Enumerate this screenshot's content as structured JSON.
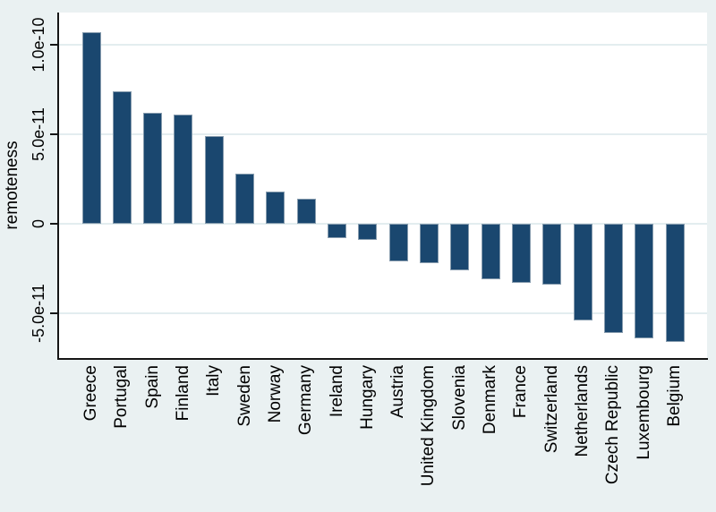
{
  "figure": {
    "background_color": "#eaf1f2",
    "plot_background_color": "#ffffff",
    "bar_color": "#1a476f",
    "bar_border_color": "#879cae",
    "grid_color": "#e3edef",
    "axis_color": "#161616",
    "text_color": "#000000"
  },
  "chart_data": {
    "type": "bar",
    "title": "",
    "xlabel": "",
    "ylabel": "remoteness",
    "grid": true,
    "legend_position": "none",
    "x_tick_rotation": 90,
    "y_tick_rotation": 90,
    "ylim": [
      -7.5e-11,
      1.18e-10
    ],
    "yticks": [
      {
        "value": 1e-10,
        "label": "1.0e-10"
      },
      {
        "value": 5e-11,
        "label": "5.0e-11"
      },
      {
        "value": 0,
        "label": "0"
      },
      {
        "value": -5e-11,
        "label": "-5.0e-11"
      }
    ],
    "categories": [
      "Greece",
      "Portugal",
      "Spain",
      "Finland",
      "Italy",
      "Sweden",
      "Norway",
      "Germany",
      "Ireland",
      "Hungary",
      "Austria",
      "United Kingdom",
      "Slovenia",
      "Denmark",
      "France",
      "Switzerland",
      "Netherlands",
      "Czech Republic",
      "Luxembourg",
      "Belgium"
    ],
    "values": [
      1.07e-10,
      7.4e-11,
      6.2e-11,
      6.1e-11,
      4.9e-11,
      2.8e-11,
      1.8e-11,
      1.4e-11,
      -8e-12,
      -9e-12,
      -2.1e-11,
      -2.2e-11,
      -2.6e-11,
      -3.1e-11,
      -3.3e-11,
      -3.4e-11,
      -5.4e-11,
      -6.1e-11,
      -6.4e-11,
      -6.6e-11
    ]
  }
}
